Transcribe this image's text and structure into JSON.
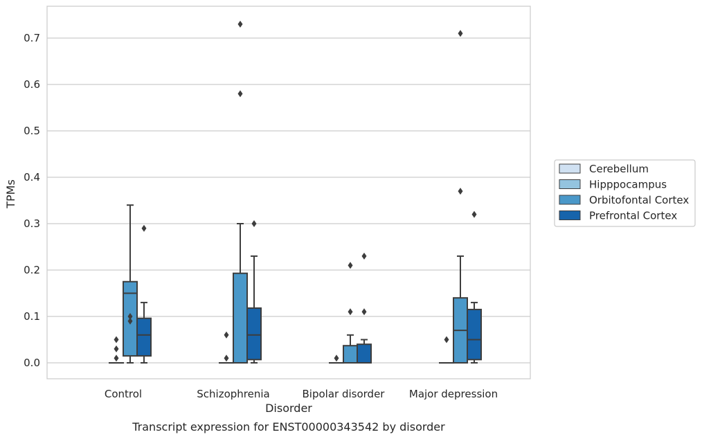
{
  "chart_data": {
    "type": "box",
    "title": "",
    "caption": "Transcript expression for ENST00000343542 by disorder",
    "xlabel": "Disorder",
    "ylabel": "TPMs",
    "ylim": [
      -0.035,
      0.768
    ],
    "yticks": [
      "0.0",
      "0.1",
      "0.2",
      "0.3",
      "0.4",
      "0.5",
      "0.6",
      "0.7"
    ],
    "grid": "horizontal",
    "legend_position": "right",
    "categories": [
      "Control",
      "Schizophrenia",
      "Bipolar disorder",
      "Major depression"
    ],
    "series": [
      {
        "name": "Cerebellum",
        "color": "#d0e1f2",
        "boxes": []
      },
      {
        "name": "Hipppocampus",
        "color": "#94c4df",
        "boxes": [
          {
            "category": "Control",
            "whislo": 0,
            "q1": 0,
            "med": 0,
            "q3": 0,
            "whishi": 0,
            "fliers": [
              0.01,
              0.03,
              0.05
            ]
          },
          {
            "category": "Schizophrenia",
            "whislo": 0,
            "q1": 0,
            "med": 0,
            "q3": 0,
            "whishi": 0,
            "fliers": [
              0.01,
              0.06
            ]
          },
          {
            "category": "Bipolar disorder",
            "whislo": 0,
            "q1": 0,
            "med": 0,
            "q3": 0,
            "whishi": 0,
            "fliers": [
              0.01
            ]
          },
          {
            "category": "Major depression",
            "whislo": 0,
            "q1": 0,
            "med": 0,
            "q3": 0,
            "whishi": 0,
            "fliers": [
              0.05
            ]
          }
        ]
      },
      {
        "name": "Orbitofontal Cortex",
        "color": "#4a98c9",
        "boxes": [
          {
            "category": "Control",
            "whislo": 0,
            "q1": 0.015,
            "med": 0.15,
            "q3": 0.175,
            "whishi": 0.34,
            "fliers": [
              0.09,
              0.1
            ]
          },
          {
            "category": "Schizophrenia",
            "whislo": 0,
            "q1": 0,
            "med": 0,
            "q3": 0.193,
            "whishi": 0.3,
            "fliers": [
              0.58,
              0.73
            ]
          },
          {
            "category": "Bipolar disorder",
            "whislo": 0,
            "q1": 0,
            "med": 0,
            "q3": 0.037,
            "whishi": 0.06,
            "fliers": [
              0.11,
              0.21
            ]
          },
          {
            "category": "Major depression",
            "whislo": 0,
            "q1": 0,
            "med": 0.07,
            "q3": 0.14,
            "whishi": 0.23,
            "fliers": [
              0.37,
              0.71
            ]
          }
        ]
      },
      {
        "name": "Prefrontal Cortex",
        "color": "#1764ab",
        "boxes": [
          {
            "category": "Control",
            "whislo": 0,
            "q1": 0.015,
            "med": 0.06,
            "q3": 0.096,
            "whishi": 0.13,
            "fliers": [
              0.29
            ]
          },
          {
            "category": "Schizophrenia",
            "whislo": 0,
            "q1": 0.007,
            "med": 0.06,
            "q3": 0.118,
            "whishi": 0.23,
            "fliers": [
              0.3
            ]
          },
          {
            "category": "Bipolar disorder",
            "whislo": 0,
            "q1": 0,
            "med": 0,
            "q3": 0.04,
            "whishi": 0.05,
            "fliers": [
              0.11,
              0.23
            ]
          },
          {
            "category": "Major depression",
            "whislo": 0,
            "q1": 0.007,
            "med": 0.05,
            "q3": 0.115,
            "whishi": 0.13,
            "fliers": [
              0.32
            ]
          }
        ]
      }
    ]
  }
}
